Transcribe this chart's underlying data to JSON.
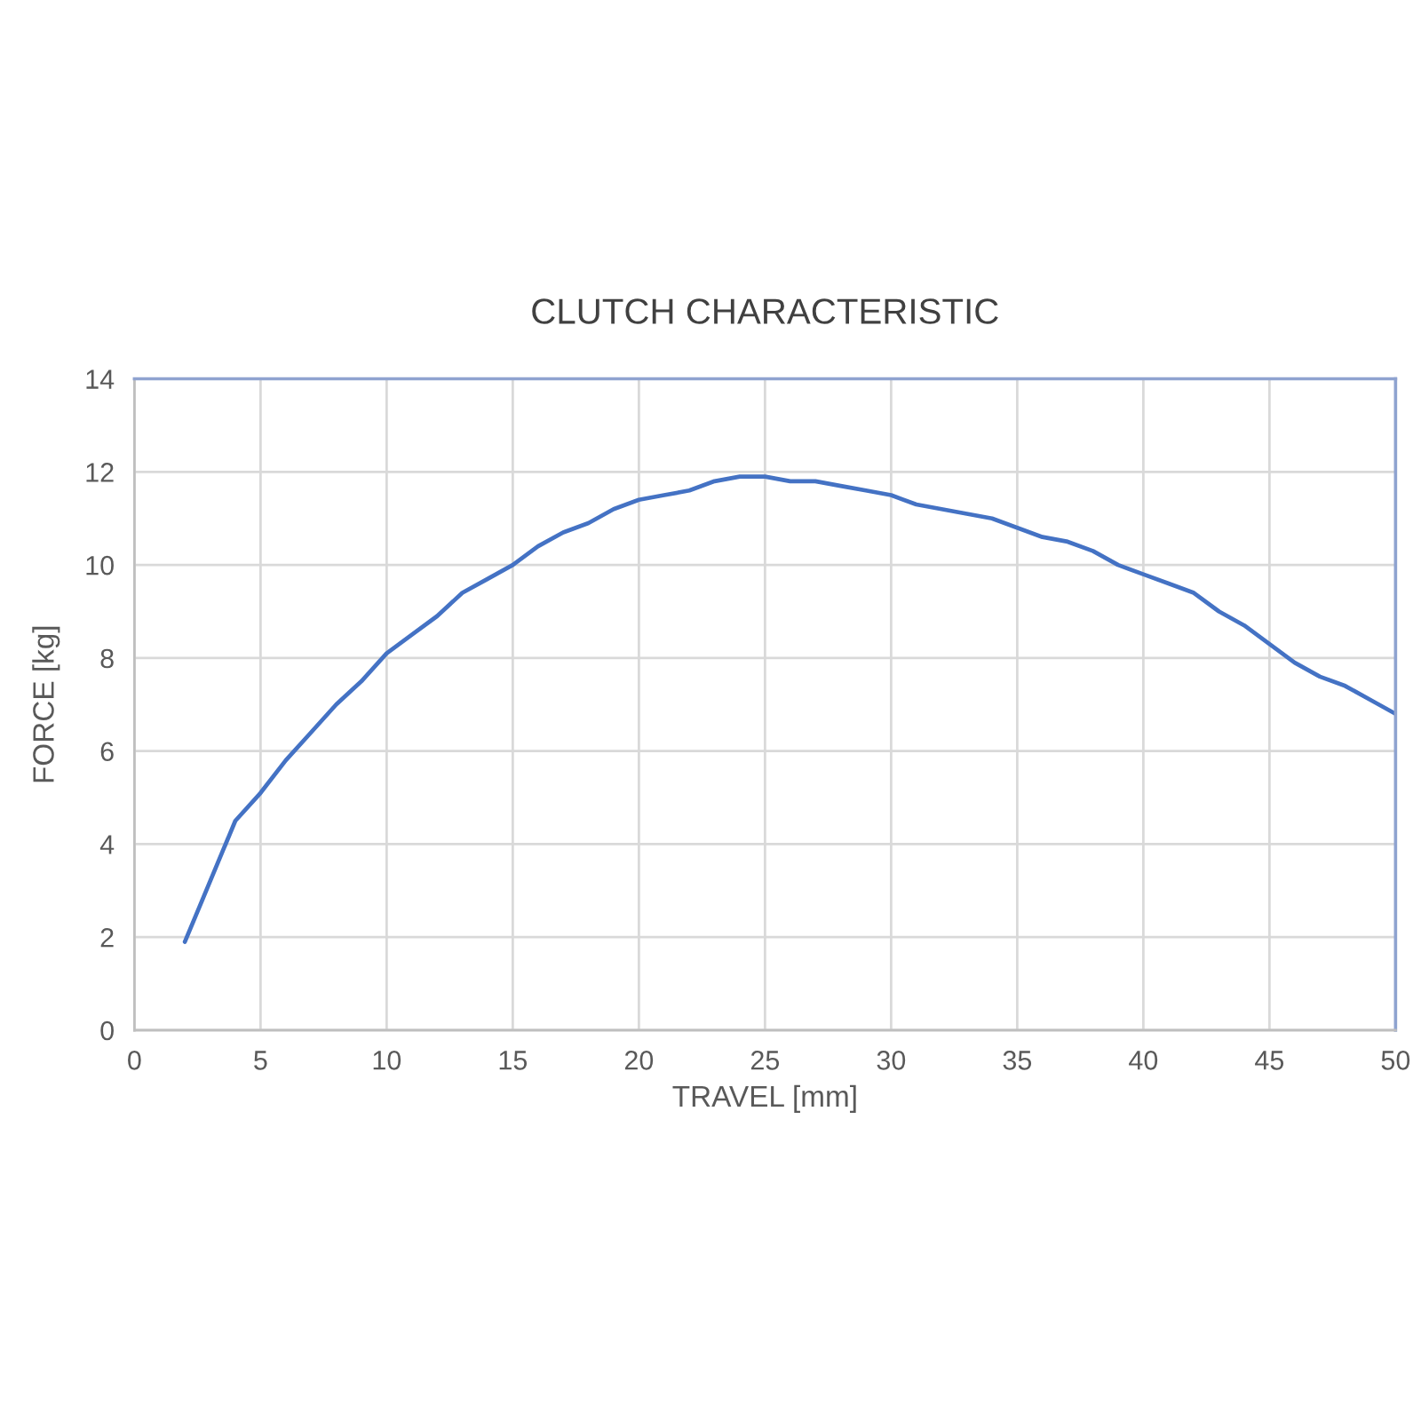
{
  "chart_data": {
    "type": "line",
    "title": "CLUTCH CHARACTERISTIC",
    "xlabel": "TRAVEL [mm]",
    "ylabel": "FORCE [kg]",
    "x": [
      2,
      4,
      5,
      6,
      7,
      8,
      9,
      10,
      11,
      12,
      13,
      14,
      15,
      16,
      17,
      18,
      19,
      20,
      21,
      22,
      23,
      24,
      25,
      26,
      27,
      28,
      29,
      30,
      31,
      32,
      33,
      34,
      35,
      36,
      37,
      38,
      39,
      40,
      41,
      42,
      43,
      44,
      45,
      46,
      47,
      48,
      49,
      50
    ],
    "series": [
      {
        "color": "#4472c4",
        "values": [
          1.9,
          4.5,
          5.1,
          5.8,
          6.4,
          7.0,
          7.5,
          8.1,
          8.5,
          8.9,
          9.4,
          9.7,
          10.0,
          10.4,
          10.7,
          10.9,
          11.2,
          11.4,
          11.5,
          11.6,
          11.8,
          11.9,
          11.9,
          11.8,
          11.8,
          11.7,
          11.6,
          11.5,
          11.3,
          11.2,
          11.1,
          11.0,
          10.8,
          10.6,
          10.5,
          10.3,
          10.0,
          9.8,
          9.6,
          9.4,
          9.0,
          8.7,
          8.3,
          7.9,
          7.6,
          7.4,
          7.1,
          6.8
        ]
      }
    ],
    "xlim": [
      0,
      50
    ],
    "xticks": [
      0,
      5,
      10,
      15,
      20,
      25,
      30,
      35,
      40,
      45,
      50
    ],
    "ylim": [
      0,
      14
    ],
    "yticks": [
      0,
      2,
      4,
      6,
      8,
      10,
      12,
      14
    ],
    "grid": true,
    "marker": "none",
    "line_style": "solid"
  }
}
